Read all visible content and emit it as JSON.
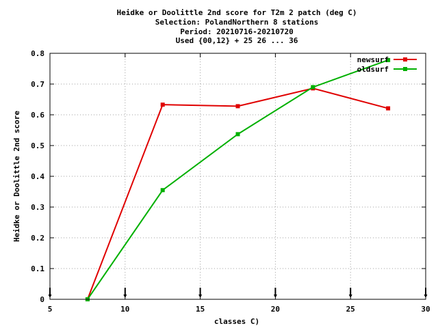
{
  "chart_data": {
    "type": "line",
    "title_lines": [
      "Heidke or Doolittle 2nd score  for T2m 2 patch (deg C)",
      "Selection: PolandNorthern      8 stations",
      "Period: 20210716-20210720",
      "Used {00,12} + 25 26 ... 36"
    ],
    "xlabel": "classes C)",
    "ylabel": "Heidke or Doolittle 2nd score",
    "xlim": [
      5,
      30
    ],
    "ylim": [
      0,
      0.8
    ],
    "xticks": [
      5,
      10,
      15,
      20,
      25,
      30
    ],
    "yticks": [
      0,
      0.1,
      0.2,
      0.3,
      0.4,
      0.5,
      0.6,
      0.7,
      0.8
    ],
    "xtick_labels": [
      "5",
      "10",
      "15",
      "20",
      "25",
      "30"
    ],
    "ytick_labels": [
      "0",
      "0.1",
      "0.2",
      "0.3",
      "0.4",
      "0.5",
      "0.6",
      "0.7",
      "0.8"
    ],
    "class_boundaries": [
      5,
      10,
      15,
      20,
      25,
      30
    ],
    "grid": true,
    "legend_position": "top-right",
    "series": [
      {
        "name": "newsurf",
        "color": "#e00000",
        "x": [
          7.5,
          12.5,
          17.5,
          22.5,
          27.5
        ],
        "y": [
          0.0,
          0.633,
          0.628,
          0.686,
          0.621
        ]
      },
      {
        "name": "oldsurf",
        "color": "#00b000",
        "x": [
          7.5,
          12.5,
          17.5,
          22.5,
          27.5
        ],
        "y": [
          0.0,
          0.355,
          0.537,
          0.69,
          0.778
        ]
      }
    ]
  }
}
